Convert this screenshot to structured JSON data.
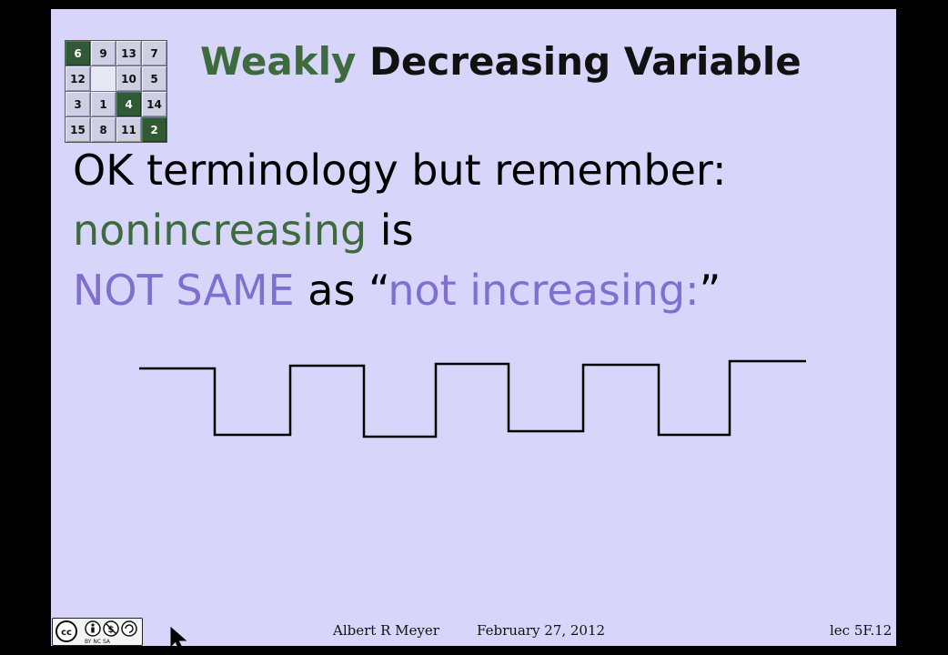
{
  "slide": {
    "title_accent": "Weakly",
    "title_rest": "Decreasing Variable",
    "line1": "OK terminology but remember:",
    "line2_green": "nonincreasing",
    "line2_rest": "is",
    "line3_purple": "NOT SAME",
    "line3_mid": "as “",
    "line3_purple2": "not increasing:",
    "line3_end": "”"
  },
  "puzzle": {
    "tiles": [
      "6",
      "9",
      "13",
      "7",
      "12",
      "",
      "10",
      "5",
      "3",
      "1",
      "4",
      "14",
      "15",
      "8",
      "11",
      "2"
    ],
    "dark_tiles": [
      "6",
      "4",
      "2"
    ]
  },
  "footer": {
    "author": "Albert R Meyer",
    "date": "February 27, 2012",
    "lecture": "lec 5F.12"
  },
  "license": {
    "badge_text": "BY NC SA"
  }
}
